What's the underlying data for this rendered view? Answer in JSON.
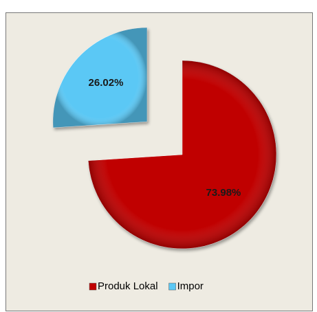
{
  "chart_data": {
    "type": "pie",
    "categories": [
      "Produk Lokal",
      "Impor"
    ],
    "values": [
      73.98,
      26.02
    ],
    "value_labels": [
      "73.98%",
      "26.02%"
    ],
    "colors": [
      "#c00000",
      "#5bc8f5"
    ],
    "legend": "bottom"
  }
}
